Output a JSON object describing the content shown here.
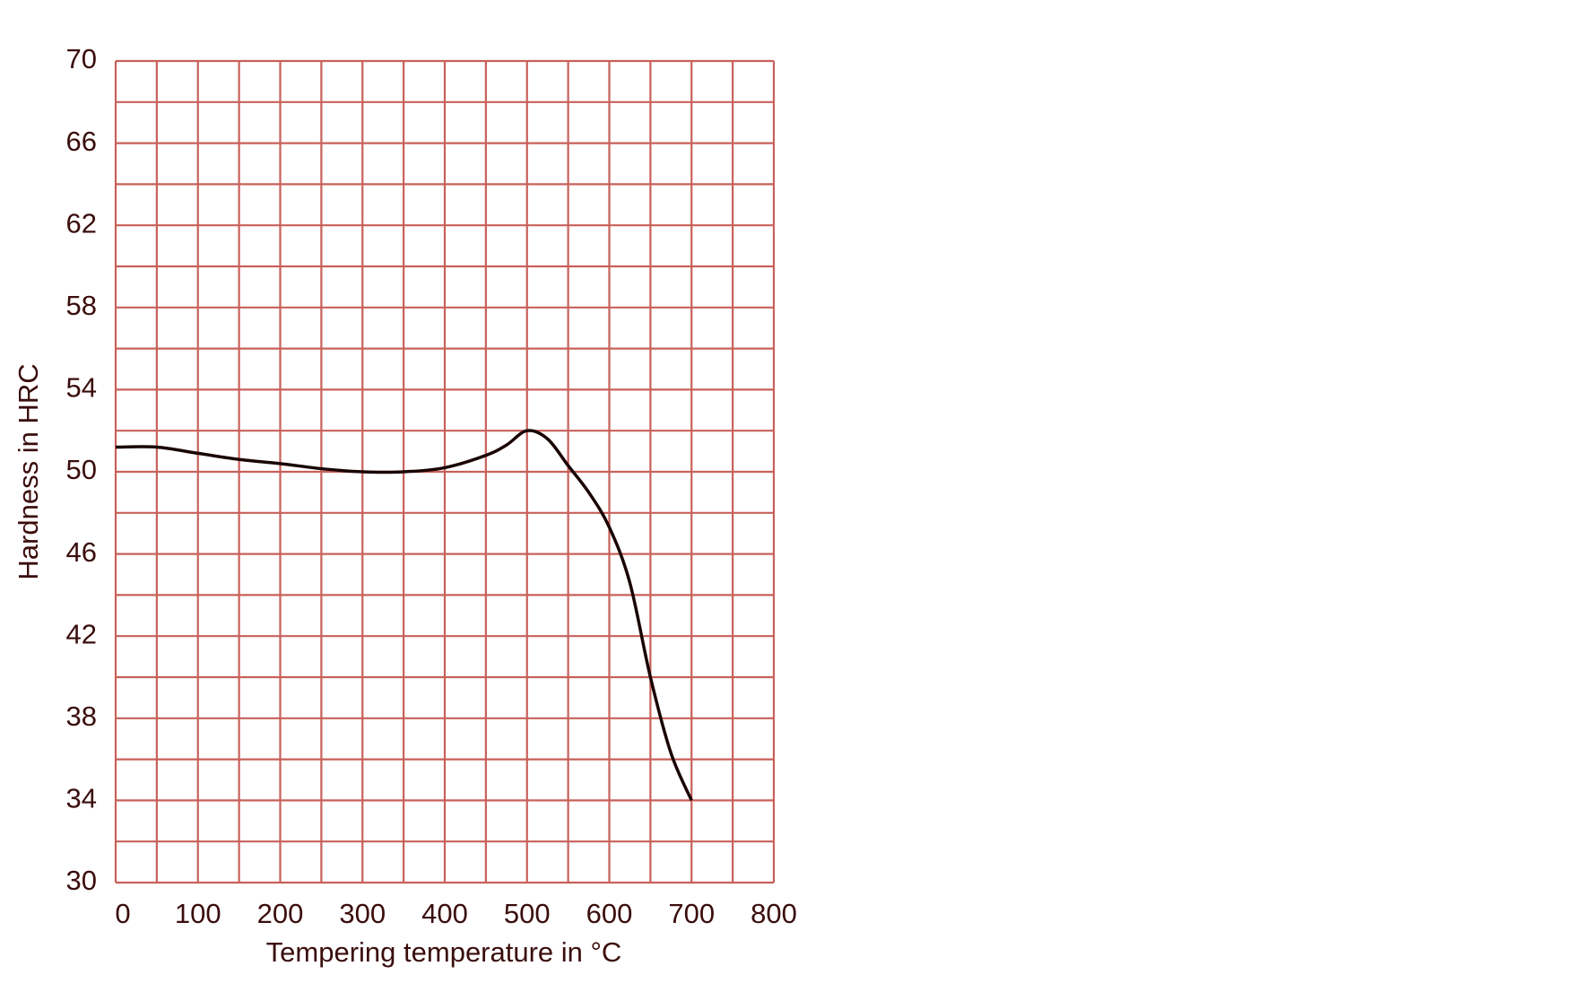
{
  "chart_data": {
    "type": "line",
    "x_label": "Tempering temperature in °C",
    "y_label": "Hardness in HRC",
    "x": [
      0,
      50,
      100,
      150,
      200,
      250,
      300,
      350,
      400,
      450,
      475,
      500,
      525,
      550,
      575,
      600,
      625,
      650,
      675,
      700
    ],
    "series": [
      {
        "color": "#1a0505",
        "values": [
          51.2,
          51.2,
          50.9,
          50.6,
          50.4,
          50.15,
          50.0,
          50.0,
          50.2,
          50.8,
          51.3,
          52.0,
          51.6,
          50.3,
          49.0,
          47.3,
          44.6,
          40.0,
          36.3,
          34.0
        ]
      }
    ],
    "xlim": [
      0,
      800
    ],
    "ylim": [
      30,
      70
    ],
    "xticks": [
      0,
      100,
      200,
      300,
      400,
      500,
      600,
      700,
      800
    ],
    "yticks": [
      30,
      34,
      38,
      42,
      46,
      50,
      54,
      58,
      62,
      66,
      70
    ],
    "xgrid": [
      0,
      50,
      100,
      150,
      200,
      250,
      300,
      350,
      400,
      450,
      500,
      550,
      600,
      650,
      700,
      750,
      800
    ],
    "ygrid": [
      30,
      32,
      34,
      36,
      38,
      40,
      42,
      44,
      46,
      48,
      50,
      52,
      54,
      56,
      58,
      60,
      62,
      64,
      66,
      68,
      70
    ],
    "grid": true,
    "grid_color": "#c8605a"
  }
}
